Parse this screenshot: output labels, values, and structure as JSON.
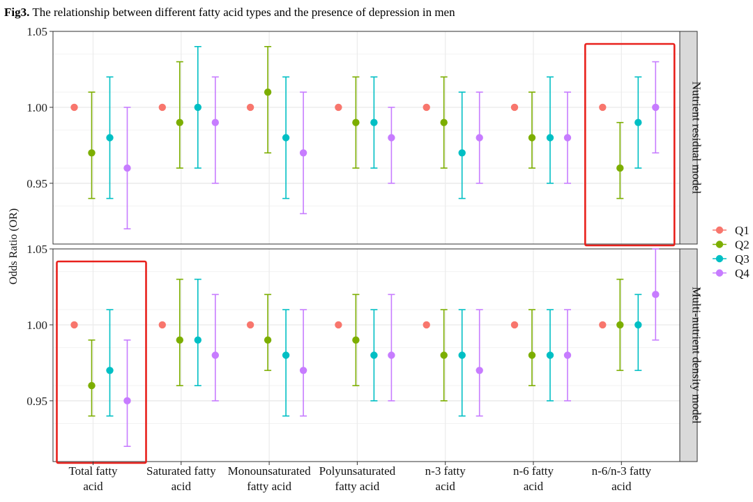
{
  "title": {
    "prefix": "Fig3.",
    "text": "The relationship between different fatty acid types and the presence of depression in men"
  },
  "chart_data": {
    "type": "scatter",
    "subtype": "point-range (odds ratio with confidence intervals), faceted",
    "ylabel": "Odds Ratio (OR)",
    "xlabel": "",
    "ylim": [
      0.91,
      1.05
    ],
    "yticks": [
      0.95,
      1.0,
      1.05
    ],
    "ytick_labels": [
      "0.95",
      "1.00",
      "1.05"
    ],
    "grid": true,
    "categories": [
      [
        "Total fatty",
        "acid"
      ],
      [
        "Saturated fatty",
        "acid"
      ],
      [
        "Monounsaturated",
        "fatty acid"
      ],
      [
        "Polyunsaturated",
        "fatty acid"
      ],
      [
        "n-3 fatty",
        "acid"
      ],
      [
        "n-6 fatty",
        "acid"
      ],
      [
        "n-6/n-3 fatty",
        "acid"
      ]
    ],
    "series_meta": [
      {
        "name": "Q1",
        "color": "#F8766D"
      },
      {
        "name": "Q2",
        "color": "#7CAE00"
      },
      {
        "name": "Q3",
        "color": "#00BFC4"
      },
      {
        "name": "Q4",
        "color": "#C77CFF"
      }
    ],
    "legend_position": "right",
    "facets": [
      {
        "label": "Nutrient residual model",
        "highlight_category_index": 6,
        "series": [
          {
            "name": "Q1",
            "values": [
              1.0,
              1.0,
              1.0,
              1.0,
              1.0,
              1.0,
              1.0
            ],
            "lower": [
              null,
              null,
              null,
              null,
              null,
              null,
              null
            ],
            "upper": [
              null,
              null,
              null,
              null,
              null,
              null,
              null
            ]
          },
          {
            "name": "Q2",
            "values": [
              0.97,
              0.99,
              1.01,
              0.99,
              0.99,
              0.98,
              0.96
            ],
            "lower": [
              0.94,
              0.96,
              0.97,
              0.96,
              0.96,
              0.96,
              0.94
            ],
            "upper": [
              1.01,
              1.03,
              1.04,
              1.02,
              1.02,
              1.01,
              0.99
            ]
          },
          {
            "name": "Q3",
            "values": [
              0.98,
              1.0,
              0.98,
              0.99,
              0.97,
              0.98,
              0.99
            ],
            "lower": [
              0.94,
              0.96,
              0.94,
              0.96,
              0.94,
              0.95,
              0.96
            ],
            "upper": [
              1.02,
              1.04,
              1.02,
              1.02,
              1.01,
              1.02,
              1.02
            ]
          },
          {
            "name": "Q4",
            "values": [
              0.96,
              0.99,
              0.97,
              0.98,
              0.98,
              0.98,
              1.0
            ],
            "lower": [
              0.92,
              0.95,
              0.93,
              0.95,
              0.95,
              0.95,
              0.97
            ],
            "upper": [
              1.0,
              1.02,
              1.01,
              1.0,
              1.01,
              1.01,
              1.03
            ]
          }
        ]
      },
      {
        "label": "Multi-nutrient density model",
        "highlight_category_index": 0,
        "series": [
          {
            "name": "Q1",
            "values": [
              1.0,
              1.0,
              1.0,
              1.0,
              1.0,
              1.0,
              1.0
            ],
            "lower": [
              null,
              null,
              null,
              null,
              null,
              null,
              null
            ],
            "upper": [
              null,
              null,
              null,
              null,
              null,
              null,
              null
            ]
          },
          {
            "name": "Q2",
            "values": [
              0.96,
              0.99,
              0.99,
              0.99,
              0.98,
              0.98,
              1.0
            ],
            "lower": [
              0.94,
              0.96,
              0.97,
              0.96,
              0.95,
              0.96,
              0.97
            ],
            "upper": [
              0.99,
              1.03,
              1.02,
              1.02,
              1.01,
              1.01,
              1.03
            ]
          },
          {
            "name": "Q3",
            "values": [
              0.97,
              0.99,
              0.98,
              0.98,
              0.98,
              0.98,
              1.0
            ],
            "lower": [
              0.94,
              0.96,
              0.94,
              0.95,
              0.94,
              0.95,
              0.97
            ],
            "upper": [
              1.01,
              1.03,
              1.01,
              1.01,
              1.01,
              1.01,
              1.02
            ]
          },
          {
            "name": "Q4",
            "values": [
              0.95,
              0.98,
              0.97,
              0.98,
              0.97,
              0.98,
              1.02
            ],
            "lower": [
              0.92,
              0.95,
              0.94,
              0.95,
              0.94,
              0.95,
              0.99
            ],
            "upper": [
              0.99,
              1.02,
              1.01,
              1.02,
              1.01,
              1.01,
              1.05
            ]
          }
        ]
      }
    ]
  }
}
